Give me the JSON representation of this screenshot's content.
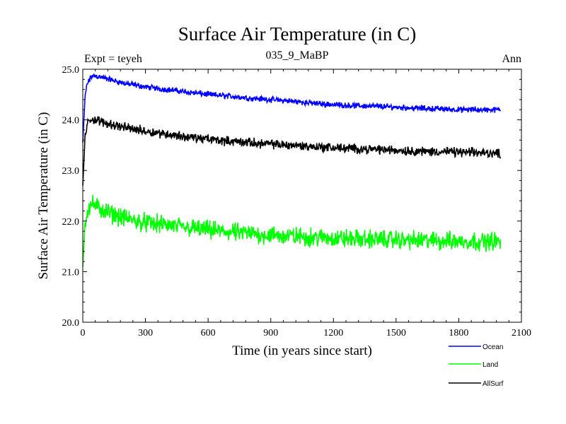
{
  "chart_data": {
    "type": "line",
    "title": "Surface Air Temperature (in C)",
    "subtitle": "035_9_MaBP",
    "annotation_left": "Expt = teyeh",
    "annotation_right": "Ann",
    "xlabel": "Time (in years since start)",
    "ylabel": "Surface Air Temperature (in C)",
    "xlim": [
      0,
      2100
    ],
    "ylim": [
      20.0,
      25.0
    ],
    "xticks": [
      0,
      300,
      600,
      900,
      1200,
      1500,
      1800,
      2100
    ],
    "yticks": [
      20.0,
      21.0,
      22.0,
      23.0,
      24.0,
      25.0
    ],
    "xtick_labels": [
      "0",
      "300",
      "600",
      "900",
      "1200",
      "1500",
      "1800",
      "2100"
    ],
    "ytick_labels": [
      "20.0",
      "21.0",
      "22.0",
      "23.0",
      "24.0",
      "25.0"
    ],
    "grid": false,
    "legend_position": "bottom-right",
    "series": [
      {
        "name": "Ocean",
        "color": "#0000ff",
        "x": [
          0,
          10,
          20,
          40,
          60,
          100,
          200,
          300,
          400,
          500,
          600,
          700,
          800,
          900,
          1000,
          1100,
          1200,
          1300,
          1400,
          1500,
          1600,
          1700,
          1800,
          1900,
          2000
        ],
        "values": [
          23.55,
          24.4,
          24.7,
          24.85,
          24.87,
          24.83,
          24.72,
          24.65,
          24.6,
          24.55,
          24.5,
          24.47,
          24.43,
          24.4,
          24.37,
          24.33,
          24.3,
          24.28,
          24.27,
          24.25,
          24.23,
          24.22,
          24.2,
          24.2,
          24.2
        ],
        "noise": 0.05
      },
      {
        "name": "Land",
        "color": "#00ff00",
        "x": [
          0,
          10,
          20,
          40,
          60,
          100,
          200,
          300,
          400,
          500,
          600,
          700,
          800,
          900,
          1000,
          1100,
          1200,
          1300,
          1400,
          1500,
          1600,
          1700,
          1800,
          1900,
          2000
        ],
        "values": [
          21.1,
          21.9,
          22.2,
          22.35,
          22.3,
          22.2,
          22.05,
          21.97,
          21.92,
          21.87,
          21.82,
          21.78,
          21.75,
          21.72,
          21.7,
          21.68,
          21.66,
          21.65,
          21.64,
          21.63,
          21.62,
          21.61,
          21.6,
          21.6,
          21.6
        ],
        "noise": 0.16
      },
      {
        "name": "AllSurf",
        "color": "#000000",
        "x": [
          0,
          10,
          20,
          40,
          60,
          100,
          200,
          300,
          400,
          500,
          600,
          700,
          800,
          900,
          1000,
          1100,
          1200,
          1300,
          1400,
          1500,
          1600,
          1700,
          1800,
          1900,
          2000
        ],
        "values": [
          22.7,
          23.6,
          23.9,
          24.02,
          24.0,
          23.95,
          23.85,
          23.78,
          23.72,
          23.66,
          23.62,
          23.58,
          23.55,
          23.52,
          23.5,
          23.47,
          23.45,
          23.43,
          23.42,
          23.4,
          23.38,
          23.37,
          23.36,
          23.35,
          23.34
        ],
        "noise": 0.08
      }
    ]
  }
}
